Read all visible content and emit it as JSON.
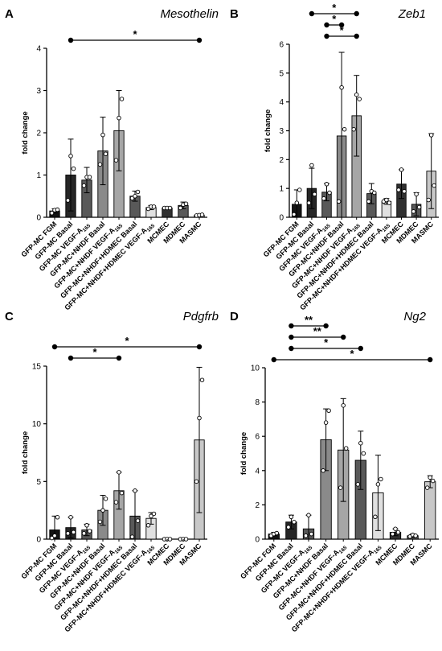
{
  "figure": {
    "title": ""
  },
  "chart_data": [
    {
      "type": "bar",
      "panel_letter": "A",
      "title": "Mesothelin",
      "ylabel": "fold change",
      "ylim": [
        0,
        4
      ],
      "yticks": [
        0,
        1,
        2,
        3,
        4
      ],
      "categories": [
        "GFP-MC FGM",
        "GFP-MC Basal",
        "GFP-MC VEGF-A165",
        "GFP-MC+NHDF Basal",
        "GFP-MC+NHDF VEGF-A165",
        "GFP-MC+NHDF+HDMEC Basal",
        "GFP-MC+NHDF+HDMEC VEGF-A165",
        "MCMEC",
        "MDMEC",
        "MASMC"
      ],
      "values": [
        0.15,
        1.0,
        0.88,
        1.57,
        2.05,
        0.5,
        0.23,
        0.22,
        0.28,
        0.05
      ],
      "errors": [
        0.05,
        0.85,
        0.3,
        0.8,
        0.95,
        0.12,
        0.05,
        0.02,
        0.08,
        0.02
      ],
      "points": [
        [
          0.1,
          0.17,
          0.18
        ],
        [
          0.4,
          1.45,
          1.15
        ],
        [
          0.75,
          0.95,
          0.95
        ],
        [
          1.25,
          1.95,
          1.5
        ],
        [
          1.35,
          2.35,
          2.8
        ],
        [
          0.45,
          0.5,
          0.6
        ],
        [
          0.2,
          0.25,
          0.25
        ],
        [
          0.22,
          0.22,
          0.22
        ],
        [
          0.22,
          0.3,
          0.32
        ],
        [
          0.04,
          0.05,
          0.06
        ]
      ],
      "bar_colors": [
        "#141414",
        "#262626",
        "#595959",
        "#8a8a8a",
        "#a6a6a6",
        "#595959",
        "#e0e0e0",
        "#303030",
        "#595959",
        "#c8c8c8"
      ],
      "significance": [
        {
          "from": 1,
          "to": 9,
          "label": "*"
        }
      ]
    },
    {
      "type": "bar",
      "panel_letter": "B",
      "title": "Zeb1",
      "ylabel": "fold change",
      "ylim": [
        0,
        6
      ],
      "yticks": [
        0,
        1,
        2,
        3,
        4,
        5,
        6
      ],
      "categories": [
        "GFP-MC FGM",
        "GFP-MC Basal",
        "GFP-MC VEGF-A165",
        "GFP-MC+NHDF Basal",
        "GFP-MC+NHDF VEGF-A165",
        "GFP-MC+NHDF+HDMEC Basal",
        "GFP-MC+NHDF+HDMEC VEGF-A165",
        "MCMEC",
        "MDMEC",
        "MASMC"
      ],
      "values": [
        0.45,
        1.0,
        0.87,
        2.82,
        3.52,
        0.82,
        0.55,
        1.15,
        0.45,
        1.6
      ],
      "errors": [
        0.5,
        0.7,
        0.3,
        2.9,
        1.4,
        0.35,
        0.1,
        0.5,
        0.4,
        1.3
      ],
      "points": [
        [
          0.1,
          0.5,
          0.95
        ],
        [
          0.5,
          1.8,
          0.8
        ],
        [
          0.65,
          1.15,
          0.85
        ],
        [
          0.55,
          4.5,
          3.05
        ],
        [
          3.05,
          4.25,
          4.1
        ],
        [
          0.55,
          0.9,
          0.85
        ],
        [
          0.55,
          0.6,
          0.5
        ],
        [
          0.95,
          1.65,
          0.9
        ],
        [
          0.2,
          0.8,
          0.35
        ],
        [
          0.6,
          2.85,
          1.1
        ]
      ],
      "bar_colors": [
        "#141414",
        "#262626",
        "#595959",
        "#8a8a8a",
        "#a6a6a6",
        "#595959",
        "#e0e0e0",
        "#303030",
        "#595959",
        "#c8c8c8"
      ],
      "significance": [
        {
          "from": 2,
          "to": 4,
          "label": "*"
        },
        {
          "from": 2,
          "to": 3,
          "label": "*"
        },
        {
          "from": 1,
          "to": 4,
          "label": "*"
        }
      ]
    },
    {
      "type": "bar",
      "panel_letter": "C",
      "title": "Pdgfrb",
      "ylabel": "fold change",
      "ylim": [
        0,
        15
      ],
      "yticks": [
        0,
        5,
        10,
        15
      ],
      "categories": [
        "GFP-MC FGM",
        "GFP-MC Basal",
        "GFP-MC VEGF-A165",
        "GFP-MC+NHDF Basal",
        "GFP-MC+NHDF VEGF-A165",
        "GFP-MC+NHDF+HDMEC Basal",
        "GFP-MC+NHDF+HDMEC VEGF-A165",
        "MCMEC",
        "MDMEC",
        "MASMC"
      ],
      "values": [
        0.8,
        1.0,
        0.8,
        2.5,
        4.2,
        2.0,
        1.8,
        0.0,
        0.0,
        8.6
      ],
      "errors": [
        1.2,
        0.9,
        0.5,
        1.3,
        1.6,
        2.2,
        0.5,
        0.0,
        0.0,
        6.3
      ],
      "points": [
        [
          0.1,
          0.3,
          1.9
        ],
        [
          0.5,
          1.9,
          0.6
        ],
        [
          0.5,
          1.2,
          0.7
        ],
        [
          1.5,
          2.5,
          3.5
        ],
        [
          3.2,
          5.8,
          4.0
        ],
        [
          0.2,
          4.2,
          1.6
        ],
        [
          1.2,
          2.0,
          2.2
        ],
        [
          0.0,
          0.0,
          0.0
        ],
        [
          0.0,
          0.0,
          0.0
        ],
        [
          5.0,
          10.5,
          13.8
        ]
      ],
      "bar_colors": [
        "#141414",
        "#262626",
        "#595959",
        "#8a8a8a",
        "#a6a6a6",
        "#595959",
        "#e0e0e0",
        "#303030",
        "#595959",
        "#c8c8c8"
      ],
      "significance": [
        {
          "from": 1,
          "to": 4,
          "label": "*"
        },
        {
          "from": 0,
          "to": 9,
          "label": "*"
        }
      ]
    },
    {
      "type": "bar",
      "panel_letter": "D",
      "title": "Ng2",
      "ylabel": "fold change",
      "ylim": [
        0,
        10
      ],
      "yticks": [
        0,
        2,
        4,
        6,
        8,
        10
      ],
      "categories": [
        "GFP-MC FGM",
        "GFP-MC Basal",
        "GFP-MC VEGF-A165",
        "GFP-MC+NHDF Basal",
        "GFP-MC+NHDF VEGF-A165",
        "GFP-MC+NHDF+HDMEC Basal",
        "GFP-MC+NHDF+HDMEC VEGF-A165",
        "MCMEC",
        "MDMEC",
        "MASMC"
      ],
      "values": [
        0.3,
        1.0,
        0.6,
        5.8,
        5.2,
        4.6,
        2.7,
        0.4,
        0.2,
        3.35
      ],
      "errors": [
        0.1,
        0.4,
        0.8,
        1.8,
        3.0,
        1.7,
        2.2,
        0.2,
        0.1,
        0.35
      ],
      "points": [
        [
          0.2,
          0.3,
          0.35
        ],
        [
          0.7,
          1.3,
          1.0
        ],
        [
          0.2,
          1.4,
          0.3
        ],
        [
          4.0,
          6.8,
          7.5
        ],
        [
          3.0,
          7.8,
          5.3
        ],
        [
          3.2,
          5.6,
          5.0
        ],
        [
          1.3,
          3.2,
          3.5
        ],
        [
          0.3,
          0.6,
          0.4
        ],
        [
          0.15,
          0.25,
          0.2
        ],
        [
          3.0,
          3.6,
          3.4
        ]
      ],
      "bar_colors": [
        "#141414",
        "#262626",
        "#595959",
        "#8a8a8a",
        "#a6a6a6",
        "#595959",
        "#e0e0e0",
        "#303030",
        "#595959",
        "#c8c8c8"
      ],
      "significance": [
        {
          "from": 0,
          "to": 9,
          "label": "*"
        },
        {
          "from": 1,
          "to": 5,
          "label": "*"
        },
        {
          "from": 1,
          "to": 4,
          "label": "**"
        },
        {
          "from": 1,
          "to": 3,
          "label": "**"
        }
      ]
    }
  ]
}
